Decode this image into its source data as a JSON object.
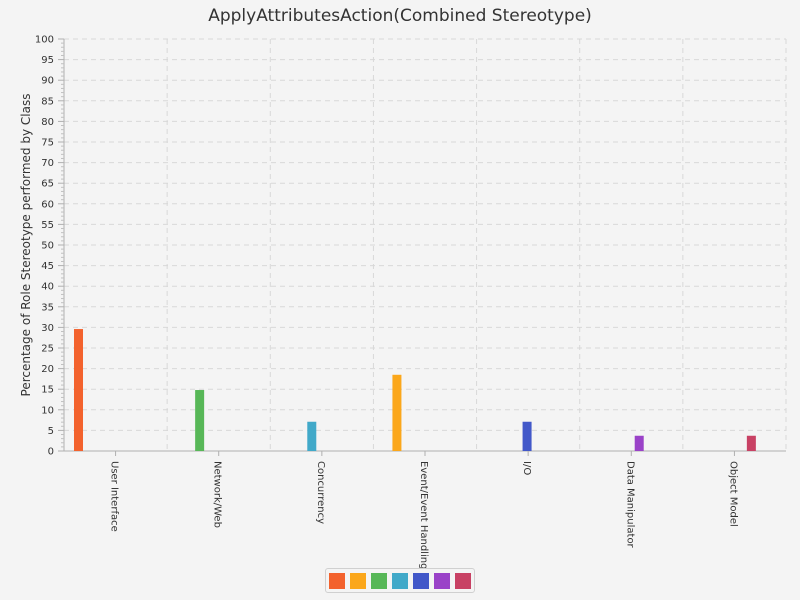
{
  "chart_data": {
    "type": "bar",
    "title": "ApplyAttributesAction(Combined Stereotype)",
    "xlabel": "",
    "ylabel": "Percentage of Role Stereotype performed by Class",
    "ylim": [
      0,
      100
    ],
    "y_ticks": [
      0,
      5,
      10,
      15,
      20,
      25,
      30,
      35,
      40,
      45,
      50,
      55,
      60,
      65,
      70,
      75,
      80,
      85,
      90,
      95,
      100
    ],
    "categories": [
      "User Interface",
      "Network/Web",
      "Concurrency",
      "Event/Event Handling",
      "I/O",
      "Data Manipulator",
      "Object Model"
    ],
    "series": [
      {
        "color": "#f3622d",
        "values": [
          29.6,
          0,
          0,
          0,
          0,
          0,
          0
        ]
      },
      {
        "color": "#fba71b",
        "values": [
          0,
          0,
          0,
          18.5,
          0,
          0,
          0
        ]
      },
      {
        "color": "#57b757",
        "values": [
          0,
          14.8,
          0,
          0,
          0,
          0,
          0
        ]
      },
      {
        "color": "#41a9c9",
        "values": [
          0,
          0,
          7.1,
          0,
          0,
          0,
          0
        ]
      },
      {
        "color": "#4258c9",
        "values": [
          0,
          0,
          0,
          0,
          7.1,
          0,
          0
        ]
      },
      {
        "color": "#9a42c8",
        "values": [
          0,
          0,
          0,
          0,
          0,
          3.7,
          0
        ]
      },
      {
        "color": "#c84164",
        "values": [
          0,
          0,
          0,
          0,
          0,
          0,
          3.7
        ]
      }
    ],
    "grid": true,
    "legend_position": "bottom"
  }
}
